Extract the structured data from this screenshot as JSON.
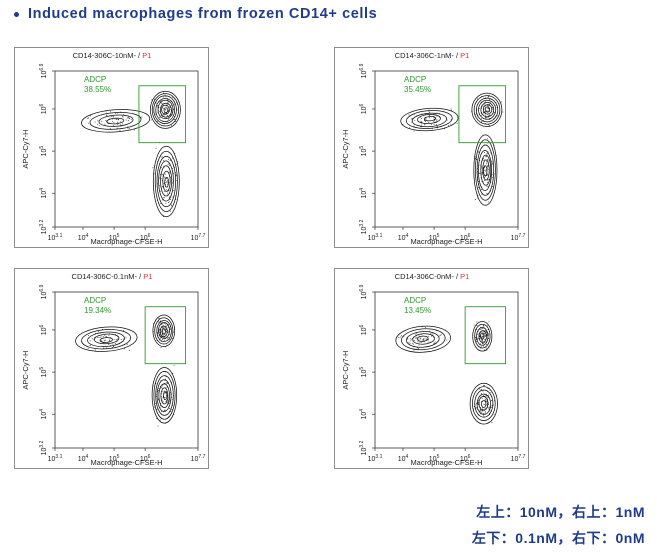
{
  "page": {
    "heading": "Induced macrophages from frozen CD14+ cells",
    "notes": [
      "左上：10nM，右上：1nM",
      "左下：0.1nM，右下：0nM"
    ],
    "colors": {
      "heading": "#1f3b8c",
      "gate": "#2f9a2f",
      "gate_name": "#e03030",
      "contour": "#111111"
    }
  },
  "chart_data": [
    {
      "type": "contour",
      "title_prefix": "CD14-306C-10nM- / ",
      "title_gate": "P1",
      "xlabel": "Macrophage-CFSE-H",
      "ylabel": "APC-Cy7-H",
      "x_ticks": [
        {
          "label": "10",
          "sup": "3.1"
        },
        {
          "label": "10",
          "sup": "4"
        },
        {
          "label": "10",
          "sup": "5"
        },
        {
          "label": "10",
          "sup": "6"
        },
        {
          "label": "10",
          "sup": "7.7"
        }
      ],
      "y_ticks": [
        {
          "label": "10",
          "sup": "3.2"
        },
        {
          "label": "10",
          "sup": "4"
        },
        {
          "label": "10",
          "sup": "5"
        },
        {
          "label": "10",
          "sup": "6"
        },
        {
          "label": "10",
          "sup": "6.9"
        }
      ],
      "xlim_log": [
        3.1,
        7.7
      ],
      "ylim_log": [
        3.2,
        6.9
      ],
      "gate": {
        "name": "ADCP",
        "percent": "38.55%",
        "x_log": [
          5.8,
          7.3
        ],
        "y_log": [
          5.2,
          6.55
        ]
      },
      "populations": [
        {
          "x": 6.65,
          "y": 5.98,
          "sx": 0.22,
          "sy": 0.2,
          "rings": 8
        },
        {
          "x": 6.68,
          "y": 4.28,
          "sx": 0.19,
          "sy": 0.38,
          "rings": 7
        },
        {
          "x": 5.05,
          "y": 5.72,
          "sx": 0.5,
          "sy": 0.12,
          "rings": 4
        }
      ]
    },
    {
      "type": "contour",
      "title_prefix": "CD14-306C-1nM- / ",
      "title_gate": "P1",
      "xlabel": "Macrophage-CFSE-H",
      "ylabel": "APC-Cy7-H",
      "x_ticks": [
        {
          "label": "10",
          "sup": "3.1"
        },
        {
          "label": "10",
          "sup": "4"
        },
        {
          "label": "10",
          "sup": "5"
        },
        {
          "label": "10",
          "sup": "6"
        },
        {
          "label": "10",
          "sup": "7.7"
        }
      ],
      "y_ticks": [
        {
          "label": "10",
          "sup": "3.2"
        },
        {
          "label": "10",
          "sup": "4"
        },
        {
          "label": "10",
          "sup": "5"
        },
        {
          "label": "10",
          "sup": "6"
        },
        {
          "label": "10",
          "sup": "6.9"
        }
      ],
      "xlim_log": [
        3.1,
        7.7
      ],
      "ylim_log": [
        3.2,
        6.9
      ],
      "gate": {
        "name": "ADCP",
        "percent": "35.45%",
        "x_log": [
          5.8,
          7.3
        ],
        "y_log": [
          5.2,
          6.55
        ]
      },
      "populations": [
        {
          "x": 6.7,
          "y": 5.98,
          "sx": 0.22,
          "sy": 0.18,
          "rings": 7
        },
        {
          "x": 6.65,
          "y": 4.55,
          "sx": 0.17,
          "sy": 0.38,
          "rings": 7
        },
        {
          "x": 4.85,
          "y": 5.75,
          "sx": 0.42,
          "sy": 0.12,
          "rings": 5
        }
      ]
    },
    {
      "type": "contour",
      "title_prefix": "CD14-306C-0.1nM- / ",
      "title_gate": "P1",
      "xlabel": "Macrophage-CFSE-H",
      "ylabel": "APC-Cy7-H",
      "x_ticks": [
        {
          "label": "10",
          "sup": "3.1"
        },
        {
          "label": "10",
          "sup": "4"
        },
        {
          "label": "10",
          "sup": "5"
        },
        {
          "label": "10",
          "sup": "6"
        },
        {
          "label": "10",
          "sup": "7.7"
        }
      ],
      "y_ticks": [
        {
          "label": "10",
          "sup": "3.2"
        },
        {
          "label": "10",
          "sup": "4"
        },
        {
          "label": "10",
          "sup": "5"
        },
        {
          "label": "10",
          "sup": "6"
        },
        {
          "label": "10",
          "sup": "6.9"
        }
      ],
      "xlim_log": [
        3.1,
        7.7
      ],
      "ylim_log": [
        3.2,
        6.9
      ],
      "gate": {
        "name": "ADCP",
        "percent": "19.34%",
        "x_log": [
          6.0,
          7.3
        ],
        "y_log": [
          5.2,
          6.55
        ]
      },
      "populations": [
        {
          "x": 6.6,
          "y": 5.98,
          "sx": 0.16,
          "sy": 0.17,
          "rings": 6
        },
        {
          "x": 6.62,
          "y": 4.45,
          "sx": 0.18,
          "sy": 0.3,
          "rings": 7
        },
        {
          "x": 4.75,
          "y": 5.78,
          "sx": 0.45,
          "sy": 0.13,
          "rings": 5
        }
      ]
    },
    {
      "type": "contour",
      "title_prefix": "CD14-306C-0nM- / ",
      "title_gate": "P1",
      "xlabel": "Macrophage-CFSE-H",
      "ylabel": "APC-Cy7-H",
      "x_ticks": [
        {
          "label": "10",
          "sup": "3.1"
        },
        {
          "label": "10",
          "sup": "4"
        },
        {
          "label": "10",
          "sup": "5"
        },
        {
          "label": "10",
          "sup": "6"
        },
        {
          "label": "10",
          "sup": "7.7"
        }
      ],
      "y_ticks": [
        {
          "label": "10",
          "sup": "3.2"
        },
        {
          "label": "10",
          "sup": "4"
        },
        {
          "label": "10",
          "sup": "5"
        },
        {
          "label": "10",
          "sup": "6"
        },
        {
          "label": "10",
          "sup": "6.9"
        }
      ],
      "xlim_log": [
        3.1,
        7.7
      ],
      "ylim_log": [
        3.2,
        6.9
      ],
      "gate": {
        "name": "ADCP",
        "percent": "13.45%",
        "x_log": [
          6.0,
          7.3
        ],
        "y_log": [
          5.2,
          6.55
        ]
      },
      "populations": [
        {
          "x": 6.55,
          "y": 5.85,
          "sx": 0.14,
          "sy": 0.16,
          "rings": 5
        },
        {
          "x": 6.6,
          "y": 4.25,
          "sx": 0.2,
          "sy": 0.22,
          "rings": 6
        },
        {
          "x": 4.65,
          "y": 5.78,
          "sx": 0.4,
          "sy": 0.14,
          "rings": 5
        }
      ]
    }
  ]
}
